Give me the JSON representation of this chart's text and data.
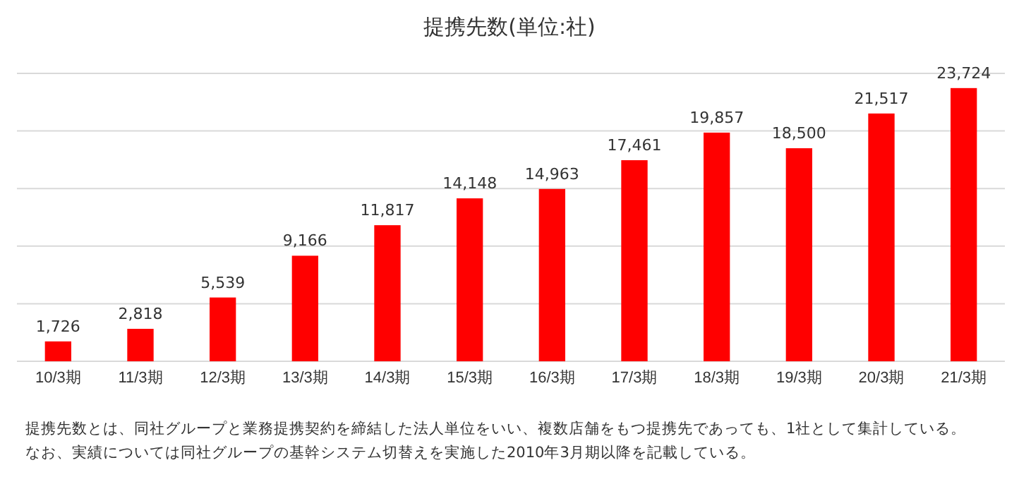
{
  "chart_data": {
    "type": "bar",
    "title": "提携先数(単位:社)",
    "categories": [
      "10/3期",
      "11/3期",
      "12/3期",
      "13/3期",
      "14/3期",
      "15/3期",
      "16/3期",
      "17/3期",
      "18/3期",
      "19/3期",
      "20/3期",
      "21/3期"
    ],
    "values": [
      1726,
      2818,
      5539,
      9166,
      11817,
      14148,
      14963,
      17461,
      19857,
      18500,
      21517,
      23724
    ],
    "value_labels": [
      "1,726",
      "2,818",
      "5,539",
      "9,166",
      "11,817",
      "14,148",
      "14,963",
      "17,461",
      "19,857",
      "18,500",
      "21,517",
      "23,724"
    ],
    "color": "#ff0000",
    "ylim": [
      0,
      25000
    ],
    "yticks": [
      {
        "value": 0,
        "label": null
      },
      {
        "value": 5000,
        "label": null
      },
      {
        "value": 10000,
        "label": null
      },
      {
        "value": 15000,
        "label": null
      },
      {
        "value": 20000,
        "label": null
      },
      {
        "value": 25000,
        "label": null
      }
    ],
    "grid": "y",
    "tick_labels": "x",
    "annotations": [
      "提携先数とは、同社グループと業務提携契約を締結した法人単位をいい、複数店舗をもつ提携先であっても、1社として集計している。",
      "なお、実績については同社グループの基幹システム切替えを実施した2010年3月期以降を記載している。"
    ]
  }
}
